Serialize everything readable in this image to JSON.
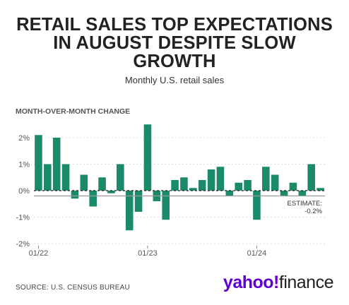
{
  "header": {
    "title_lines": [
      "RETAIL SALES TOP EXPECTATIONS",
      "IN AUGUST DESPITE SLOW",
      "GROWTH"
    ],
    "subtitle": "Monthly U.S. retail sales",
    "y_axis_title": "MONTH-OVER-MONTH CHANGE"
  },
  "footer": {
    "source": "SOURCE: U.S. CENSUS BUREAU",
    "logo_brand": "yahoo!",
    "logo_product": "finance"
  },
  "colors": {
    "bar": "#1b8a6b",
    "estimate_line": "#999999",
    "zero_line": "#222222",
    "grid": "#dddddd"
  },
  "chart_data": {
    "type": "bar",
    "title": "RETAIL SALES TOP EXPECTATIONS IN AUGUST DESPITE SLOW GROWTH",
    "subtitle": "Monthly U.S. retail sales",
    "ylabel": "MONTH-OVER-MONTH CHANGE",
    "ylim": [
      -2,
      2.5
    ],
    "yticks": [
      2,
      1,
      0,
      -1,
      -2
    ],
    "ytick_labels": [
      "2%",
      "1%",
      "0%",
      "-1%",
      "-2%"
    ],
    "xtick_labels": [
      {
        "label": "01/22",
        "index": 0
      },
      {
        "label": "01/23",
        "index": 12
      },
      {
        "label": "01/24",
        "index": 24
      }
    ],
    "categories": [
      "01/22",
      "02/22",
      "03/22",
      "04/22",
      "05/22",
      "06/22",
      "07/22",
      "08/22",
      "09/22",
      "10/22",
      "11/22",
      "12/22",
      "01/23",
      "02/23",
      "03/23",
      "04/23",
      "05/23",
      "06/23",
      "07/23",
      "08/23",
      "09/23",
      "10/23",
      "11/23",
      "12/23",
      "01/24",
      "02/24",
      "03/24",
      "04/24",
      "05/24",
      "06/24",
      "07/24",
      "08/24"
    ],
    "values": [
      2.1,
      1.0,
      2.0,
      1.0,
      -0.3,
      0.6,
      -0.6,
      0.5,
      -0.1,
      1.0,
      -1.5,
      -0.8,
      2.5,
      -0.4,
      -1.1,
      0.4,
      0.5,
      0.1,
      0.4,
      0.8,
      0.9,
      -0.2,
      0.3,
      0.4,
      -1.1,
      0.9,
      0.6,
      -0.2,
      0.3,
      -0.2,
      1.0,
      0.1
    ],
    "annotation": {
      "lines": [
        "ESTIMATE:",
        "-0.2%"
      ],
      "value": -0.2
    }
  }
}
